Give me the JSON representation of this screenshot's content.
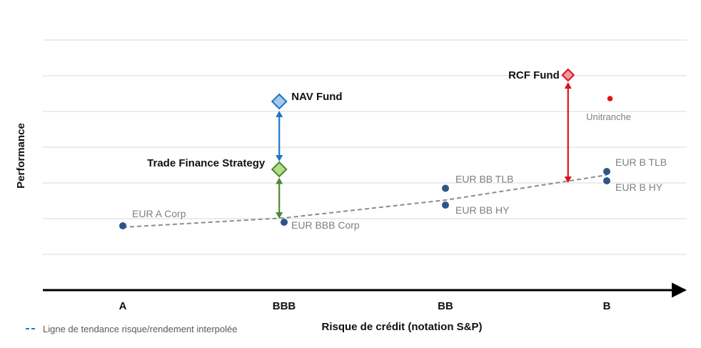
{
  "chart_data": {
    "type": "scatter",
    "xlabel": "Risque de crédit (notation S&P)",
    "ylabel": "Performance",
    "categories": [
      "A",
      "BBB",
      "BB",
      "B"
    ],
    "grid": true,
    "y_axis_labels": false,
    "points": [
      {
        "label": "EUR A Corp",
        "x": 0.0,
        "y": 1.8,
        "color": "#2e5585"
      },
      {
        "label": "EUR BBB Corp",
        "x": 1.0,
        "y": 1.9,
        "color": "#2e5585"
      },
      {
        "label": "EUR BB TLB",
        "x": 2.0,
        "y": 2.85,
        "color": "#2e5585"
      },
      {
        "label": "EUR BB HY",
        "x": 2.0,
        "y": 2.38,
        "color": "#2e5585"
      },
      {
        "label": "EUR B TLB",
        "x": 3.0,
        "y": 3.32,
        "color": "#2e5585"
      },
      {
        "label": "EUR B HY",
        "x": 3.0,
        "y": 3.06,
        "color": "#2e5585"
      },
      {
        "label": "Unitranche",
        "x": 3.02,
        "y": 5.36,
        "color": "#e3101a"
      }
    ],
    "funds": [
      {
        "label": "NAV Fund",
        "x": 0.97,
        "y": 5.28,
        "color": "#1f74c8",
        "fill": "#a8c8ea"
      },
      {
        "label": "Trade Finance Strategy",
        "x": 0.97,
        "y": 3.38,
        "color": "#4a8a2a",
        "fill": "#b5dc8c"
      },
      {
        "label": "RCF Fund",
        "x": 2.76,
        "y": 6.02,
        "color": "#d8141e",
        "fill": "#f29aa0"
      }
    ],
    "arrows": [
      {
        "from": "Trade Finance Strategy",
        "to": "NAV Fund",
        "color": "#1f74c8",
        "x": 0.97,
        "y_from": 3.6,
        "y_to": 5.02
      },
      {
        "from": "Trade Finance",
        "to": "trend",
        "color": "#4a8a2a",
        "x": 0.97,
        "y_from": 3.15,
        "y_to": 2.0
      },
      {
        "from": "RCF Fund",
        "to": "trend",
        "color": "#d8141e",
        "x": 2.76,
        "y_from": 5.82,
        "y_to": 3.0
      }
    ],
    "trend_line": {
      "style": "dashed",
      "color": "#8c8c8c",
      "x": [
        0.0,
        1.0,
        2.0,
        3.0
      ],
      "y": [
        1.76,
        2.02,
        2.52,
        3.22
      ]
    },
    "legend": {
      "entries": [
        {
          "label": "Ligne de tendance risque/rendement interpolée",
          "color": "#2e75b6",
          "style": "dashed"
        }
      ],
      "position": "bottom-left"
    },
    "ylim": [
      0,
      7
    ]
  }
}
